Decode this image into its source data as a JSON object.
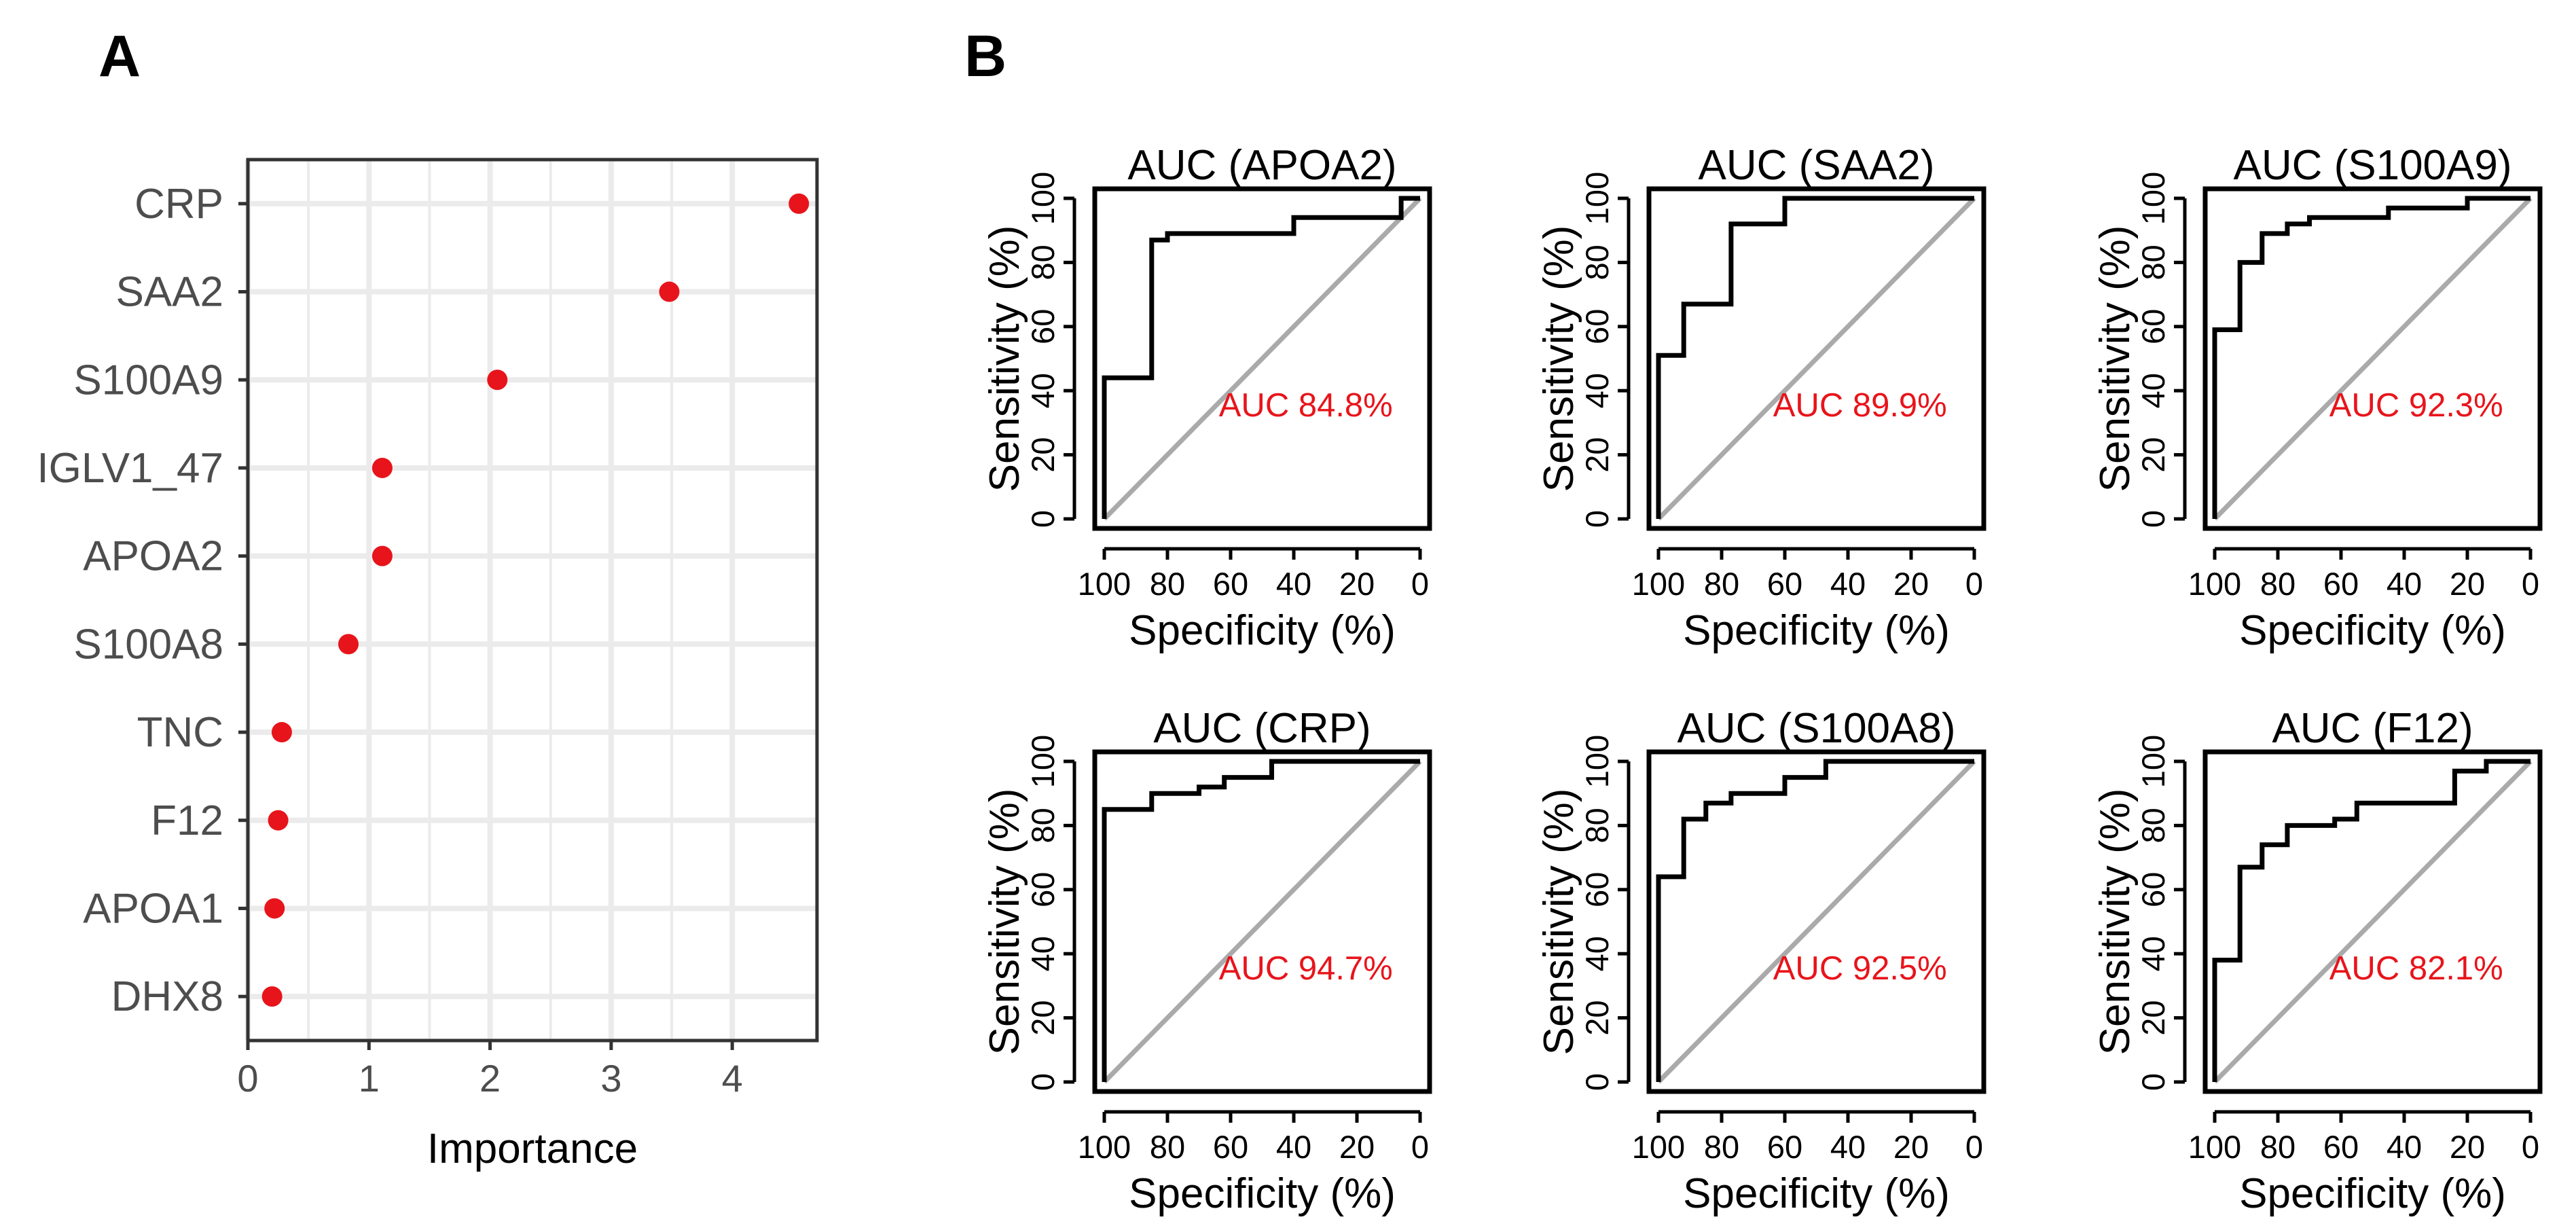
{
  "panel_labels": {
    "a": "A",
    "b": "B"
  },
  "chart_data": [
    {
      "type": "scatter",
      "orientation": "horizontal-dotplot",
      "title": "",
      "xlabel": "Importance",
      "ylabel": "",
      "xlim": [
        0,
        4.7
      ],
      "xticks": [
        0,
        1,
        2,
        3,
        4
      ],
      "categories": [
        "CRP",
        "SAA2",
        "S100A9",
        "IGLV1_47",
        "APOA2",
        "S100A8",
        "TNC",
        "F12",
        "APOA1",
        "DHX8"
      ],
      "values": [
        4.55,
        3.48,
        2.06,
        1.11,
        1.11,
        0.83,
        0.28,
        0.25,
        0.22,
        0.2
      ],
      "point_color": "#e8141b",
      "grid": true
    },
    {
      "type": "line",
      "title": "AUC (APOA2)",
      "xlabel": "Specificity (%)",
      "ylabel": "Sensitivity (%)",
      "xlim": [
        100,
        0
      ],
      "ylim": [
        0,
        100
      ],
      "xticks": [
        100,
        80,
        60,
        40,
        20,
        0
      ],
      "yticks": [
        0,
        20,
        40,
        60,
        80,
        100
      ],
      "auc_label": "AUC 84.8%",
      "diagonal": true,
      "x": [
        100,
        100,
        85,
        85,
        80,
        80,
        40,
        40,
        6,
        6,
        0
      ],
      "y": [
        0,
        44,
        44,
        87,
        87,
        89,
        89,
        94,
        94,
        100,
        100
      ]
    },
    {
      "type": "line",
      "title": "AUC (SAA2)",
      "xlabel": "Specificity (%)",
      "ylabel": "Sensitivity (%)",
      "xlim": [
        100,
        0
      ],
      "ylim": [
        0,
        100
      ],
      "xticks": [
        100,
        80,
        60,
        40,
        20,
        0
      ],
      "yticks": [
        0,
        20,
        40,
        60,
        80,
        100
      ],
      "auc_label": "AUC 89.9%",
      "diagonal": true,
      "x": [
        100,
        100,
        92,
        92,
        77,
        77,
        60,
        60,
        0
      ],
      "y": [
        0,
        51,
        51,
        67,
        67,
        92,
        92,
        100,
        100
      ]
    },
    {
      "type": "line",
      "title": "AUC (S100A9)",
      "xlabel": "Specificity (%)",
      "ylabel": "Sensitivity (%)",
      "xlim": [
        100,
        0
      ],
      "ylim": [
        0,
        100
      ],
      "xticks": [
        100,
        80,
        60,
        40,
        20,
        0
      ],
      "yticks": [
        0,
        20,
        40,
        60,
        80,
        100
      ],
      "auc_label": "AUC 92.3%",
      "diagonal": true,
      "x": [
        100,
        100,
        92,
        92,
        85,
        85,
        77,
        77,
        70,
        70,
        45,
        45,
        20,
        20,
        0
      ],
      "y": [
        0,
        59,
        59,
        80,
        80,
        89,
        89,
        92,
        92,
        94,
        94,
        97,
        97,
        100,
        100
      ]
    },
    {
      "type": "line",
      "title": "AUC (CRP)",
      "xlabel": "Specificity (%)",
      "ylabel": "Sensitivity (%)",
      "xlim": [
        100,
        0
      ],
      "ylim": [
        0,
        100
      ],
      "xticks": [
        100,
        80,
        60,
        40,
        20,
        0
      ],
      "yticks": [
        0,
        20,
        40,
        60,
        80,
        100
      ],
      "auc_label": "AUC 94.7%",
      "diagonal": true,
      "x": [
        100,
        100,
        85,
        85,
        70,
        70,
        62,
        62,
        47,
        47,
        0
      ],
      "y": [
        0,
        85,
        85,
        90,
        90,
        92,
        92,
        95,
        95,
        100,
        100
      ]
    },
    {
      "type": "line",
      "title": "AUC (S100A8)",
      "xlabel": "Specificity (%)",
      "ylabel": "Sensitivity (%)",
      "xlim": [
        100,
        0
      ],
      "ylim": [
        0,
        100
      ],
      "xticks": [
        100,
        80,
        60,
        40,
        20,
        0
      ],
      "yticks": [
        0,
        20,
        40,
        60,
        80,
        100
      ],
      "auc_label": "AUC 92.5%",
      "diagonal": true,
      "x": [
        100,
        100,
        92,
        92,
        85,
        85,
        77,
        77,
        60,
        60,
        47,
        47,
        0
      ],
      "y": [
        0,
        64,
        64,
        82,
        82,
        87,
        87,
        90,
        90,
        95,
        95,
        100,
        100
      ]
    },
    {
      "type": "line",
      "title": "AUC (F12)",
      "xlabel": "Specificity (%)",
      "ylabel": "Sensitivity (%)",
      "xlim": [
        100,
        0
      ],
      "ylim": [
        0,
        100
      ],
      "xticks": [
        100,
        80,
        60,
        40,
        20,
        0
      ],
      "yticks": [
        0,
        20,
        40,
        60,
        80,
        100
      ],
      "auc_label": "AUC 82.1%",
      "diagonal": true,
      "x": [
        100,
        100,
        92,
        92,
        85,
        85,
        77,
        77,
        62,
        62,
        55,
        55,
        24,
        24,
        14,
        14,
        0
      ],
      "y": [
        0,
        38,
        38,
        67,
        67,
        74,
        74,
        80,
        80,
        82,
        82,
        87,
        87,
        97,
        97,
        100,
        100
      ]
    }
  ],
  "colors": {
    "point": "#e8141b",
    "auc_text": "#e8141b",
    "roc_line": "#000000",
    "diagonal": "#aaaaaa",
    "grid": "#ebebeb",
    "tick_text": "#4d4d4d"
  }
}
